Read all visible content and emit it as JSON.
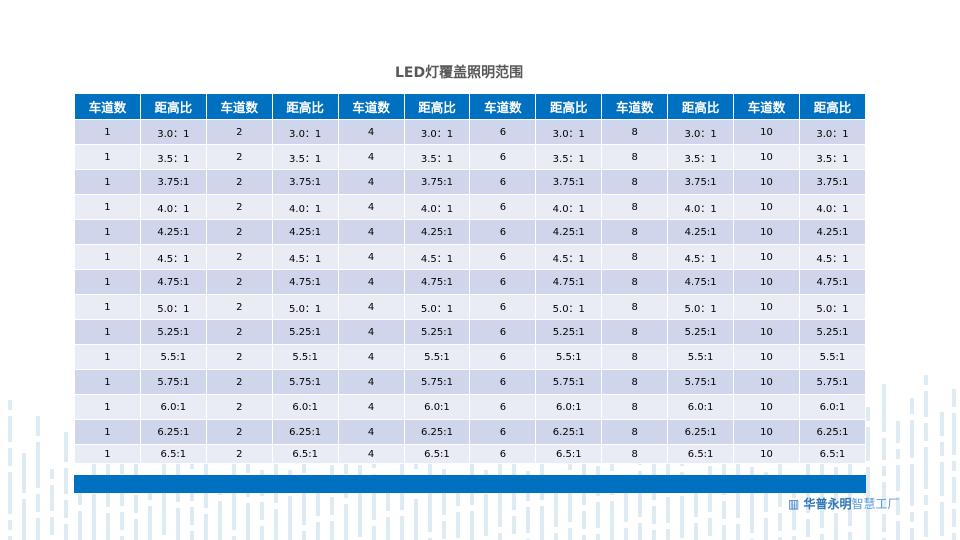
{
  "title": "LED灯覆盖照明范围",
  "table": {
    "headers": [
      "车道数",
      "距高比",
      "车道数",
      "距高比",
      "车道数",
      "距高比",
      "车道数",
      "距高比",
      "车道数",
      "距高比",
      "车道数",
      "距高比"
    ],
    "lanes": [
      "1",
      "2",
      "4",
      "6",
      "8",
      "10"
    ],
    "ratios": [
      "3.0：1",
      "3.5：1",
      "3.75:1",
      "4.0：1",
      "4.25:1",
      "4.5：1",
      "4.75:1",
      "5.0：1",
      "5.25:1",
      "5.5:1",
      "5.75:1",
      "6.0:1",
      "6.25:1",
      "6.5:1"
    ]
  },
  "logo": {
    "brand": "华普永明",
    "tagline": "智慧工厂",
    "icon": "hpwinner-logo-icon"
  },
  "colors": {
    "header": "#0070c0",
    "row_dark": "#cfd5ea",
    "row_light": "#e9ebf5",
    "decoration": "#d6e6f0"
  }
}
